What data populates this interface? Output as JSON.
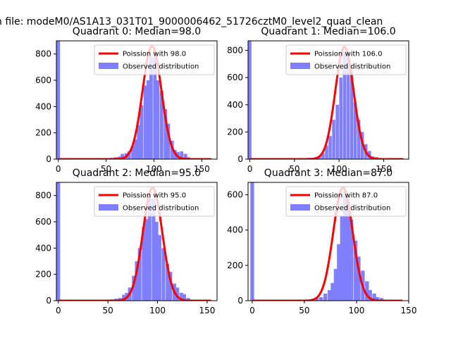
{
  "figure": {
    "suptitle": "n file: modeM0/AS1A13_031T01_9000006462_51726cztM0_level2_quad_clean"
  },
  "colors": {
    "observed": "#8080ff",
    "poisson": "#ff0000",
    "axis": "#000000"
  },
  "chart_data": [
    {
      "type": "bar",
      "title": "Quadrant 0: Median=98.0",
      "median": 98.0,
      "xlim": [
        -2,
        166
      ],
      "ylim": [
        0,
        900
      ],
      "xticks": [
        0,
        50,
        100,
        150
      ],
      "yticks": [
        0,
        200,
        400,
        600,
        800
      ],
      "grid": false,
      "legend_position": "top-right",
      "series": [
        {
          "name": "Poission with 98.0",
          "kind": "line",
          "peak": 860
        },
        {
          "name": "Observed distribution",
          "kind": "histogram",
          "bins": [
            [
              0,
              900
            ],
            [
              48,
              5
            ],
            [
              52,
              5
            ],
            [
              56,
              10
            ],
            [
              60,
              15
            ],
            [
              64,
              20
            ],
            [
              67,
              40
            ],
            [
              71,
              45
            ],
            [
              74,
              60
            ],
            [
              78,
              100
            ],
            [
              81,
              150
            ],
            [
              84,
              260
            ],
            [
              87,
              410
            ],
            [
              91,
              560
            ],
            [
              94,
              600
            ],
            [
              97,
              780
            ],
            [
              101,
              780
            ],
            [
              104,
              600
            ],
            [
              108,
              520
            ],
            [
              112,
              380
            ],
            [
              115,
              270
            ],
            [
              119,
              140
            ],
            [
              122,
              70
            ],
            [
              125,
              55
            ],
            [
              129,
              60
            ],
            [
              133,
              40
            ],
            [
              136,
              15
            ],
            [
              140,
              5
            ],
            [
              145,
              2
            ]
          ]
        }
      ]
    },
    {
      "type": "bar",
      "title": "Quadrant 1: Median=106.0",
      "median": 106.0,
      "xlim": [
        -2,
        178
      ],
      "ylim": [
        0,
        870
      ],
      "xticks": [
        0,
        50,
        100,
        150
      ],
      "yticks": [
        0,
        200,
        400,
        600,
        800
      ],
      "grid": false,
      "legend_position": "top-right",
      "series": [
        {
          "name": "Poission with 106.0",
          "kind": "line",
          "peak": 825
        },
        {
          "name": "Observed distribution",
          "kind": "histogram",
          "bins": [
            [
              0,
              870
            ],
            [
              58,
              5
            ],
            [
              62,
              5
            ],
            [
              66,
              10
            ],
            [
              70,
              10
            ],
            [
              74,
              15
            ],
            [
              78,
              20
            ],
            [
              82,
              45
            ],
            [
              86,
              100
            ],
            [
              90,
              170
            ],
            [
              94,
              290
            ],
            [
              98,
              400
            ],
            [
              102,
              600
            ],
            [
              106,
              790
            ],
            [
              110,
              780
            ],
            [
              114,
              650
            ],
            [
              118,
              420
            ],
            [
              122,
              290
            ],
            [
              126,
              200
            ],
            [
              130,
              110
            ],
            [
              134,
              60
            ],
            [
              138,
              20
            ],
            [
              142,
              15
            ],
            [
              146,
              5
            ]
          ]
        }
      ]
    },
    {
      "type": "bar",
      "title": "Quadrant 2: Median=95.0",
      "median": 95.0,
      "xlim": [
        -2,
        160
      ],
      "ylim": [
        0,
        900
      ],
      "xticks": [
        0,
        50,
        100,
        150
      ],
      "yticks": [
        0,
        200,
        400,
        600,
        800
      ],
      "grid": false,
      "legend_position": "top-right",
      "series": [
        {
          "name": "Poission with 95.0",
          "kind": "line",
          "peak": 860
        },
        {
          "name": "Observed distribution",
          "kind": "histogram",
          "bins": [
            [
              0,
              900
            ],
            [
              46,
              5
            ],
            [
              50,
              5
            ],
            [
              54,
              10
            ],
            [
              58,
              15
            ],
            [
              62,
              20
            ],
            [
              66,
              45
            ],
            [
              69,
              60
            ],
            [
              72,
              100
            ],
            [
              76,
              190
            ],
            [
              79,
              300
            ],
            [
              82,
              400
            ],
            [
              86,
              560
            ],
            [
              89,
              620
            ],
            [
              92,
              780
            ],
            [
              96,
              780
            ],
            [
              99,
              600
            ],
            [
              102,
              500
            ],
            [
              106,
              400
            ],
            [
              110,
              280
            ],
            [
              113,
              220
            ],
            [
              117,
              130
            ],
            [
              120,
              100
            ],
            [
              124,
              60
            ],
            [
              127,
              50
            ],
            [
              131,
              20
            ],
            [
              135,
              8
            ]
          ]
        }
      ]
    },
    {
      "type": "bar",
      "title": "Quadrant 3: Median=87.0",
      "median": 87.0,
      "xlim": [
        -4,
        150
      ],
      "ylim": [
        0,
        670
      ],
      "xticks": [
        0,
        50,
        100,
        150
      ],
      "yticks": [
        0,
        200,
        400,
        600
      ],
      "grid": false,
      "legend_position": "top-right",
      "series": [
        {
          "name": "Poission with 87.0",
          "kind": "line",
          "peak": 640
        },
        {
          "name": "Observed distribution",
          "kind": "histogram",
          "bins": [
            [
              0,
              670
            ],
            [
              50,
              5
            ],
            [
              54,
              5
            ],
            [
              58,
              10
            ],
            [
              62,
              15
            ],
            [
              66,
              20
            ],
            [
              70,
              40
            ],
            [
              74,
              60
            ],
            [
              77,
              100
            ],
            [
              80,
              180
            ],
            [
              83,
              320
            ],
            [
              86,
              480
            ],
            [
              89,
              620
            ],
            [
              92,
              560
            ],
            [
              95,
              460
            ],
            [
              99,
              340
            ],
            [
              102,
              250
            ],
            [
              106,
              170
            ],
            [
              110,
              110
            ],
            [
              113,
              60
            ],
            [
              117,
              40
            ],
            [
              120,
              20
            ],
            [
              124,
              15
            ],
            [
              128,
              5
            ]
          ]
        }
      ]
    }
  ]
}
